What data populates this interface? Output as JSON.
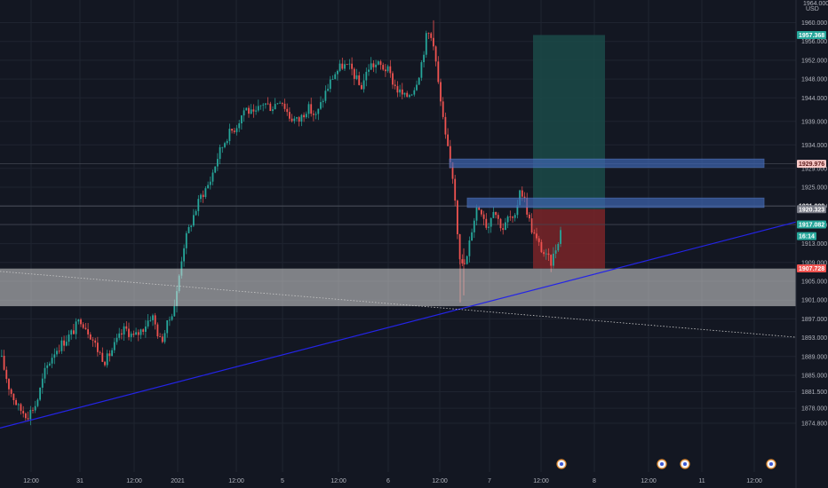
{
  "chart_data": {
    "type": "candlestick",
    "currency": "USD",
    "price_ticks": [
      1960.0,
      1956.0,
      1952.0,
      1948.0,
      1944.0,
      1939.0,
      1934.0,
      1929.0,
      1925.0,
      1921.0,
      1917.0,
      1913.0,
      1909.0,
      1905.0,
      1901.0,
      1897.0,
      1893.0,
      1889.0,
      1885.0,
      1881.5,
      1878.0,
      1874.8
    ],
    "price_tick_labels": [
      "1960.000",
      "1956.000",
      "1952.000",
      "1948.000",
      "1944.000",
      "1939.000",
      "1934.000",
      "1929.000",
      "1925.000",
      "1921.000",
      "1917.000",
      "1913.000",
      "1909.000",
      "1905.000",
      "1901.000",
      "1897.000",
      "1893.000",
      "1889.000",
      "1885.000",
      "1881.500",
      "1878.000",
      "1874.800"
    ],
    "top_partial_label": "1964.000",
    "time_labels": [
      "12:00",
      "31",
      "12:00",
      "2021",
      "12:00",
      "5",
      "12:00",
      "6",
      "12:00",
      "7",
      "12:00",
      "8",
      "12:00",
      "11",
      "12:00"
    ],
    "ylim": [
      1873.5,
      1965.5
    ],
    "price_labels": [
      {
        "text": "1957.368",
        "price": 1957.37,
        "bg": "#26a69a",
        "color": "#ffffff"
      },
      {
        "text": "1929.976",
        "price": 1929.98,
        "bg": "#f7c9c7",
        "color": "#5c1a1a"
      },
      {
        "text": "1921.009",
        "price": 1921.01,
        "bg": "#131722",
        "color": "#ffffff"
      },
      {
        "text": "1920.323",
        "price": 1920.32,
        "bg": "#787b86",
        "color": "#ffffff"
      },
      {
        "text": "1917.082",
        "price": 1917.08,
        "bg": "#26a69a",
        "color": "#ffffff"
      },
      {
        "text": "16:14",
        "price": 1914.6,
        "bg": "#26a69a",
        "color": "#ffffff"
      },
      {
        "text": "1907.728",
        "price": 1907.73,
        "bg": "#ef5350",
        "color": "#ffffff"
      }
    ],
    "zones": {
      "gray_support": {
        "top": 1907.7,
        "bottom": 1899.7,
        "color": "#d9d9d9"
      },
      "blue_resistance_upper": {
        "top": 1931.0,
        "bottom": 1929.2,
        "color": "#3f66b2"
      },
      "blue_resistance_lower": {
        "top": 1922.7,
        "bottom": 1920.7,
        "color": "#3f66b2"
      },
      "target_profit": {
        "top": 1957.37,
        "bottom": 1920.32,
        "color": "#1b4a48"
      },
      "stop_loss": {
        "top": 1920.32,
        "bottom": 1907.73,
        "color": "#7a2528"
      }
    },
    "hlines": [
      1929.98,
      1921.01,
      1917.08
    ],
    "trendline_blue": {
      "p1": {
        "time": "30 Dec",
        "price": 1875.2
      },
      "p2": {
        "time": "8 Jan",
        "price": 1917.0
      }
    },
    "trendline_dotted": {
      "p1": {
        "time": "30 Dec",
        "price": 1907.0
      },
      "p2": {
        "time": "11 Jan",
        "price": 1893.2
      }
    },
    "colors": {
      "up": "#26a69a",
      "down": "#ef5350",
      "background": "#131722",
      "trend": "#2424e6"
    }
  }
}
